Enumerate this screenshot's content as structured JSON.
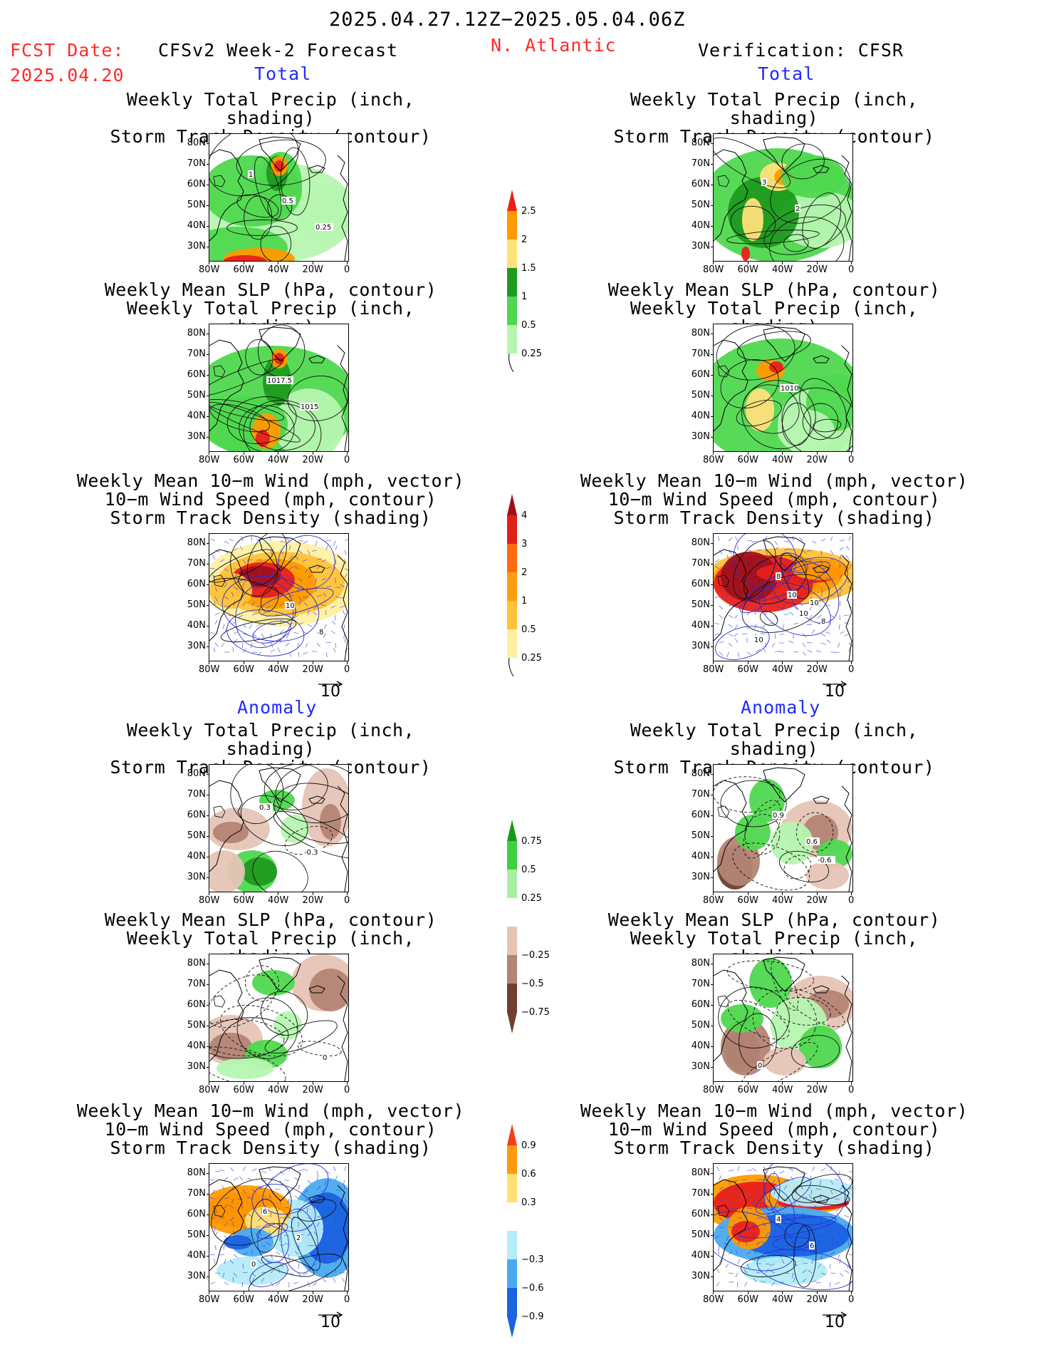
{
  "header": {
    "valid_period": "2025.04.27.12Z−2025.05.04.06Z",
    "fcst_label": "FCST Date:",
    "fcst_date": "2025.04.20",
    "model": "CFSv2 Week-2 Forecast",
    "region": "N. Atlantic",
    "verification": "Verification: CFSR"
  },
  "sections": {
    "total": "Total",
    "anomaly": "Anomaly"
  },
  "titles": {
    "precip_track": [
      "Weekly Total Precip (inch, shading)",
      "Storm Track Density (contour)"
    ],
    "slp_precip": [
      "Weekly Mean SLP (hPa, contour)",
      "Weekly Total Precip (inch, shading)"
    ],
    "wind_track": [
      "Weekly Mean 10−m Wind (mph, vector)",
      "10−m Wind Speed (mph, contour)",
      "Storm Track Density (shading)"
    ]
  },
  "axes": {
    "lat_ticks": [
      "80N",
      "70N",
      "60N",
      "50N",
      "40N",
      "30N"
    ],
    "lon_ticks": [
      "80W",
      "60W",
      "40W",
      "20W",
      "0"
    ]
  },
  "vector_ref": "10",
  "map_labels": {
    "fc_total_precip": [
      "1",
      "0.5",
      "0.25"
    ],
    "vf_total_precip": [
      "3",
      "2"
    ],
    "fc_total_slp": [
      "1017.5",
      "1015"
    ],
    "vf_total_slp": [
      "1010"
    ],
    "fc_total_wind": [
      "10",
      "8"
    ],
    "vf_total_wind": [
      "10",
      "10",
      "10",
      "8",
      "8",
      "10"
    ],
    "fc_anom_precip": [
      "-0.3",
      "0.3"
    ],
    "vf_anom_precip": [
      "-0.6",
      "0.9",
      "0.6"
    ],
    "fc_anom_slp": [
      "0"
    ],
    "vf_anom_slp": [
      "0"
    ],
    "fc_anom_wind": [
      "6",
      "2",
      "0"
    ],
    "vf_anom_wind": [
      "4",
      "6"
    ]
  },
  "colorbars": {
    "total_precip": {
      "labels": [
        "2.5",
        "2",
        "1.5",
        "1",
        "0.5",
        "0.25"
      ],
      "colors": [
        "#e8201c",
        "#ff9a00",
        "#ffe27a",
        "#1f9a1f",
        "#4fd84f",
        "#b6f5b0"
      ]
    },
    "total_track": {
      "labels": [
        "4",
        "3",
        "2",
        "1",
        "0.5",
        "0.25"
      ],
      "colors": [
        "#a0101a",
        "#e0201a",
        "#ff6a10",
        "#ff9d10",
        "#ffc23a",
        "#fff0a0"
      ]
    },
    "anom_precip": {
      "labels": [
        "0.75",
        "0.5",
        "0.25",
        "−0.25",
        "−0.5",
        "−0.75"
      ],
      "colors": [
        "#149a14",
        "#3fd03f",
        "#a8efa4",
        "#ffffff",
        "#e5c4b6",
        "#b48474",
        "#6e4030"
      ]
    },
    "anom_track": {
      "labels": [
        "0.9",
        "0.6",
        "0.3",
        "−0.3",
        "−0.6",
        "−0.9"
      ],
      "colors": [
        "#f0401a",
        "#ff9a10",
        "#ffe070",
        "#ffffff",
        "#b4ecf8",
        "#4aaaf0",
        "#1a62e0"
      ]
    }
  }
}
